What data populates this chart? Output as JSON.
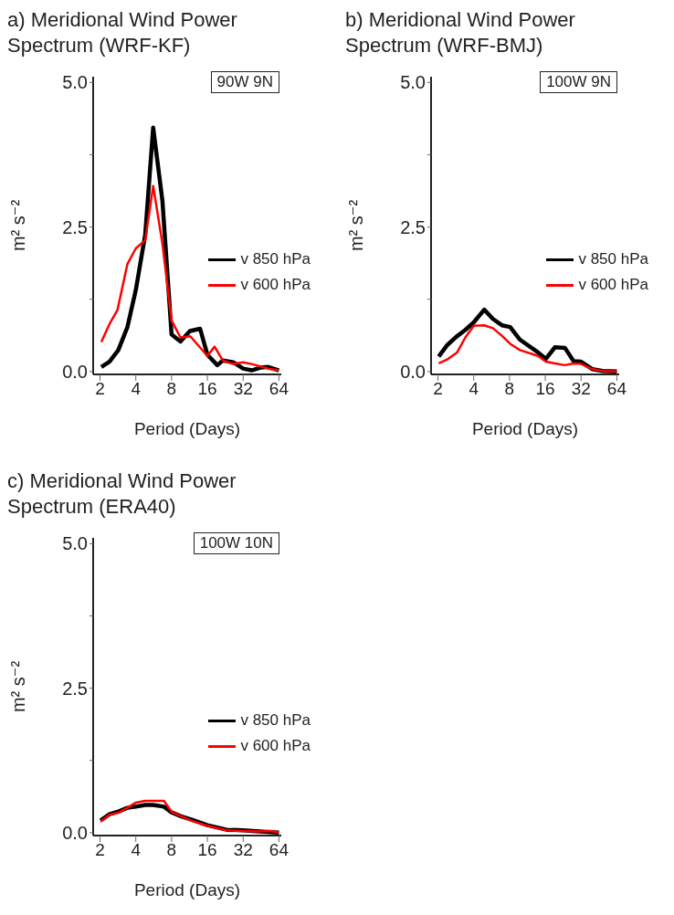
{
  "chart_data": [
    {
      "type": "line",
      "title": "a) Meridional Wind Power Spectrum (WRF-KF)",
      "xlabel": "Period (Days)",
      "ylabel": "m² s⁻²",
      "annotations": [
        "90W 9N"
      ],
      "log": "x",
      "grid": false,
      "legend": "right",
      "xlim": [
        1.75,
        67
      ],
      "xticks": [
        2,
        4,
        8,
        16,
        32,
        64
      ],
      "ylim": [
        -0.05,
        5.1
      ],
      "yticks": [
        {
          "value": 0,
          "label": "0.0"
        },
        {
          "value": 1.25,
          "label": null
        },
        {
          "value": 2.5,
          "label": "2.5"
        },
        {
          "value": 3.75,
          "label": null
        },
        {
          "value": 5,
          "label": "5.0"
        }
      ],
      "series": [
        {
          "name": "v 850 hPa",
          "color": "#000000",
          "x": [
            2.05,
            2.4,
            2.85,
            3.4,
            4,
            4.8,
            5.6,
            6.7,
            8,
            9.5,
            11.4,
            13.9,
            16,
            19.4,
            21.6,
            26.4,
            32,
            37.7,
            45.4,
            52,
            64
          ],
          "values": [
            0.08,
            0.17,
            0.37,
            0.77,
            1.41,
            2.37,
            4.22,
            2.95,
            0.64,
            0.52,
            0.7,
            0.74,
            0.29,
            0.11,
            0.19,
            0.16,
            0.05,
            0.02,
            0.07,
            0.08,
            0.02
          ]
        },
        {
          "name": "v 600 hPa",
          "color": "#ff0000",
          "x": [
            2.05,
            2.4,
            2.8,
            3.4,
            4,
            4.8,
            5.6,
            6.7,
            8,
            9.5,
            11.5,
            16,
            18.4,
            21.6,
            26.4,
            32,
            37.7,
            52,
            64
          ],
          "values": [
            0.51,
            0.82,
            1.06,
            1.86,
            2.13,
            2.27,
            3.21,
            2.21,
            0.88,
            0.59,
            0.61,
            0.27,
            0.43,
            0.19,
            0.13,
            0.16,
            0.13,
            0.05,
            0.02
          ]
        }
      ]
    },
    {
      "type": "line",
      "title": "b) Meridional Wind Power Spectrum (WRF-BMJ)",
      "xlabel": "Period (Days)",
      "ylabel": "m² s⁻²",
      "annotations": [
        "100W 9N"
      ],
      "log": "x",
      "grid": false,
      "legend": "right",
      "xlim": [
        1.75,
        67
      ],
      "xticks": [
        2,
        4,
        8,
        16,
        32,
        64
      ],
      "ylim": [
        -0.05,
        5.1
      ],
      "yticks": [
        {
          "value": 0,
          "label": "0.0"
        },
        {
          "value": 1.25,
          "label": null
        },
        {
          "value": 2.5,
          "label": "2.5"
        },
        {
          "value": 3.75,
          "label": null
        },
        {
          "value": 5,
          "label": "5.0"
        }
      ],
      "series": [
        {
          "name": "v 850 hPa",
          "color": "#000000",
          "x": [
            2.03,
            2.4,
            2.85,
            3.4,
            4,
            4.9,
            5.8,
            6.9,
            8.1,
            9.8,
            13.9,
            16.2,
            19.3,
            23.4,
            27.7,
            32,
            40,
            48.6,
            64
          ],
          "values": [
            0.26,
            0.46,
            0.6,
            0.72,
            0.85,
            1.07,
            0.91,
            0.8,
            0.77,
            0.55,
            0.33,
            0.22,
            0.42,
            0.41,
            0.18,
            0.17,
            0.04,
            0.01,
            0
          ]
        },
        {
          "name": "v 600 hPa",
          "color": "#ff0000",
          "x": [
            2.03,
            2.4,
            2.9,
            3.4,
            4,
            4.9,
            5.8,
            6.9,
            8.1,
            9.8,
            13.9,
            16.2,
            19.3,
            23.4,
            27.7,
            32,
            40,
            48.6,
            64
          ],
          "values": [
            0.14,
            0.21,
            0.33,
            0.59,
            0.79,
            0.8,
            0.75,
            0.62,
            0.48,
            0.37,
            0.27,
            0.17,
            0.14,
            0.11,
            0.14,
            0.13,
            0.04,
            0.01,
            0
          ]
        }
      ]
    },
    {
      "type": "line",
      "title": "c) Meridional Wind Power Spectrum (ERA40)",
      "xlabel": "Period (Days)",
      "ylabel": "m² s⁻²",
      "annotations": [
        "100W 10N"
      ],
      "log": "x",
      "grid": false,
      "legend": "right",
      "xlim": [
        1.75,
        67
      ],
      "xticks": [
        2,
        4,
        8,
        16,
        32,
        64
      ],
      "ylim": [
        -0.05,
        5.1
      ],
      "yticks": [
        {
          "value": 0,
          "label": "0.0"
        },
        {
          "value": 1.25,
          "label": null
        },
        {
          "value": 2.5,
          "label": "2.5"
        },
        {
          "value": 3.75,
          "label": null
        },
        {
          "value": 5,
          "label": "5.0"
        }
      ],
      "series": [
        {
          "name": "v 850 hPa",
          "color": "#000000",
          "x": [
            2.02,
            2.4,
            2.9,
            3.4,
            4,
            4.8,
            5.6,
            6.9,
            8,
            9.7,
            12,
            16,
            23.3,
            32,
            44,
            64
          ],
          "values": [
            0.21,
            0.32,
            0.37,
            0.43,
            0.45,
            0.48,
            0.48,
            0.45,
            0.35,
            0.28,
            0.22,
            0.13,
            0.05,
            0.04,
            0.02,
            0
          ]
        },
        {
          "name": "v 600 hPa",
          "color": "#ff0000",
          "x": [
            2.02,
            2.4,
            2.9,
            3.4,
            4,
            4.8,
            5.6,
            6.9,
            8,
            9.7,
            12,
            16,
            23.3,
            32,
            44,
            55,
            64
          ],
          "values": [
            0.19,
            0.31,
            0.35,
            0.43,
            0.52,
            0.55,
            0.55,
            0.55,
            0.36,
            0.28,
            0.2,
            0.12,
            0.04,
            0.03,
            0.02,
            0.03,
            0
          ]
        }
      ]
    }
  ]
}
